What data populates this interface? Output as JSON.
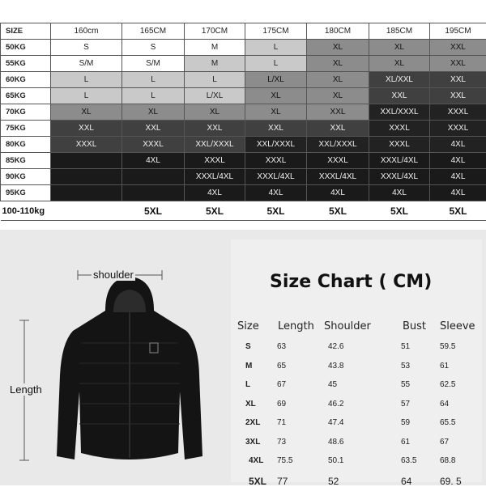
{
  "size_table": {
    "header": [
      "SIZE",
      "160cm",
      "165CM",
      "170CM",
      "175CM",
      "180CM",
      "185CM",
      "195CM"
    ],
    "rows": [
      {
        "weight": "50KG",
        "sizes": [
          "S",
          "S",
          "M",
          "L",
          "XL",
          "XL",
          "XXL"
        ]
      },
      {
        "weight": "55KG",
        "sizes": [
          "S/M",
          "S/M",
          "M",
          "L",
          "XL",
          "XL",
          "XXL"
        ]
      },
      {
        "weight": "60KG",
        "sizes": [
          "L",
          "L",
          "L",
          "L/XL",
          "XL",
          "XL/XXL",
          "XXL"
        ]
      },
      {
        "weight": "65KG",
        "sizes": [
          "L",
          "L",
          "L/XL",
          "XL",
          "XL",
          "XXL",
          "XXL"
        ]
      },
      {
        "weight": "70KG",
        "sizes": [
          "XL",
          "XL",
          "XL",
          "XL",
          "XXL",
          "XXL/XXXL",
          "XXXL"
        ]
      },
      {
        "weight": "75KG",
        "sizes": [
          "XXL",
          "XXL",
          "XXL",
          "XXL",
          "XXL",
          "XXXL",
          "XXXL"
        ]
      },
      {
        "weight": "80KG",
        "sizes": [
          "XXXL",
          "XXXL",
          "XXL/XXXL",
          "XXL/XXXL",
          "XXL/XXXL",
          "XXXL",
          "4XL"
        ]
      },
      {
        "weight": "85KG",
        "sizes": [
          "",
          "4XL",
          "XXXL",
          "XXXL",
          "XXXL",
          "XXXL/4XL",
          "4XL"
        ]
      },
      {
        "weight": "90KG",
        "sizes": [
          "",
          "",
          "XXXL/4XL",
          "XXXL/4XL",
          "XXXL/4XL",
          "XXXL/4XL",
          "4XL"
        ]
      },
      {
        "weight": "95KG",
        "sizes": [
          "",
          "",
          "4XL",
          "4XL",
          "4XL",
          "4XL",
          "4XL"
        ]
      }
    ],
    "last_row": {
      "weight": "100-110kg",
      "sizes": [
        "",
        "5XL",
        "5XL",
        "5XL",
        "5XL",
        "5XL",
        "5XL"
      ]
    },
    "shades": [
      [
        "#ffffff",
        "#ffffff",
        "#ffffff",
        "#c9c9c9",
        "#8c8c8c",
        "#8c8c8c",
        "#8c8c8c"
      ],
      [
        "#ffffff",
        "#ffffff",
        "#c9c9c9",
        "#c9c9c9",
        "#8c8c8c",
        "#8c8c8c",
        "#8c8c8c"
      ],
      [
        "#c9c9c9",
        "#c9c9c9",
        "#c9c9c9",
        "#8c8c8c",
        "#8c8c8c",
        "#404040",
        "#404040"
      ],
      [
        "#c9c9c9",
        "#c9c9c9",
        "#c9c9c9",
        "#8c8c8c",
        "#8c8c8c",
        "#404040",
        "#404040"
      ],
      [
        "#8c8c8c",
        "#8c8c8c",
        "#8c8c8c",
        "#8c8c8c",
        "#8c8c8c",
        "#222222",
        "#222222"
      ],
      [
        "#404040",
        "#404040",
        "#404040",
        "#404040",
        "#404040",
        "#222222",
        "#222222"
      ],
      [
        "#404040",
        "#404040",
        "#404040",
        "#222222",
        "#222222",
        "#222222",
        "#222222"
      ],
      [
        "#1a1a1a",
        "#1a1a1a",
        "#1a1a1a",
        "#1a1a1a",
        "#1a1a1a",
        "#1a1a1a",
        "#1a1a1a"
      ],
      [
        "#1a1a1a",
        "#1a1a1a",
        "#1a1a1a",
        "#1a1a1a",
        "#1a1a1a",
        "#1a1a1a",
        "#1a1a1a"
      ],
      [
        "#1a1a1a",
        "#1a1a1a",
        "#1a1a1a",
        "#1a1a1a",
        "#1a1a1a",
        "#1a1a1a",
        "#1a1a1a"
      ]
    ]
  },
  "diagram": {
    "shoulder_label": "shoulder",
    "length_label": "Length"
  },
  "size_chart": {
    "title": "Size Chart ( CM)",
    "columns": [
      "Size",
      "Length",
      "Shoulder",
      "Bust",
      "Sleeve"
    ],
    "rows": [
      [
        "S",
        "63",
        "42.6",
        "51",
        "59.5"
      ],
      [
        "M",
        "65",
        "43.8",
        "53",
        "61"
      ],
      [
        "L",
        "67",
        "45",
        "55",
        "62.5"
      ],
      [
        "XL",
        "69",
        "46.2",
        "57",
        "64"
      ],
      [
        "2XL",
        "71",
        "47.4",
        "59",
        "65.5"
      ],
      [
        "3XL",
        "73",
        "48.6",
        "61",
        "67"
      ],
      [
        "4XL",
        "75.5",
        "50.1",
        "63.5",
        "68.8"
      ],
      [
        "5XL",
        "77",
        "52",
        "64",
        "69. 5"
      ]
    ]
  }
}
